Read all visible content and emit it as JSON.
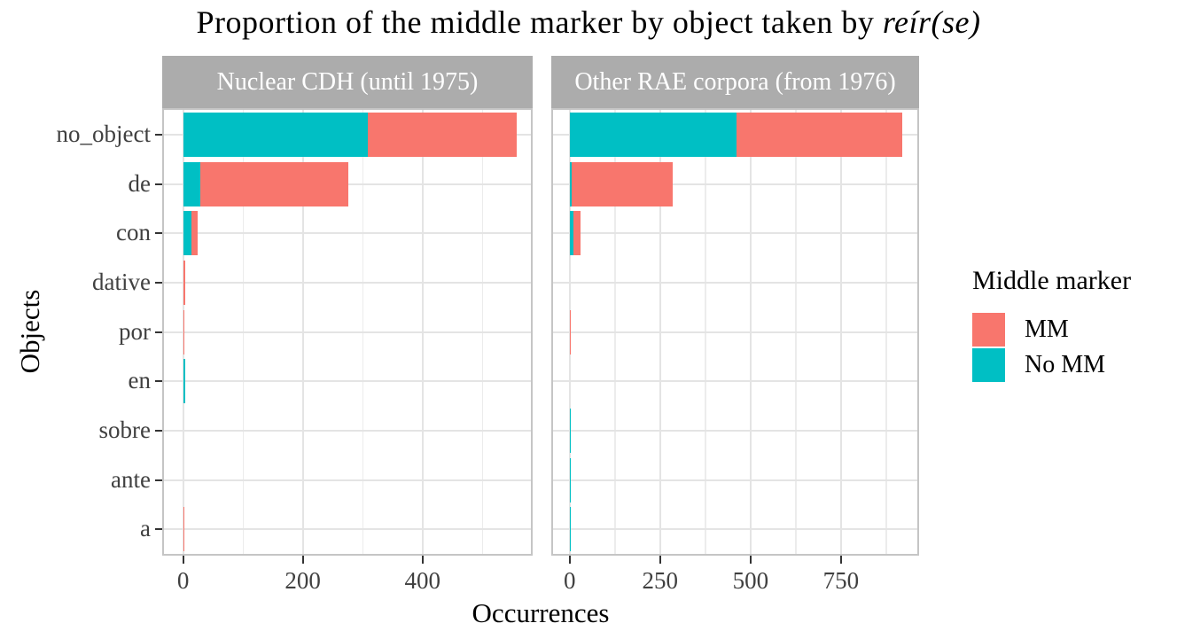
{
  "title": {
    "main": "Proportion of the middle marker by object taken by ",
    "italic": "reír(se)"
  },
  "axes": {
    "x_label": "Occurrences",
    "y_label": "Objects"
  },
  "legend": {
    "title": "Middle marker",
    "items": [
      {
        "label": "MM",
        "color": "#F8766D"
      },
      {
        "label": "No MM",
        "color": "#00BFC4"
      }
    ]
  },
  "colors": {
    "mm": "#F8766D",
    "no_mm": "#00BFC4",
    "strip_bg": "#ACACAC",
    "strip_text": "#FFFFFF",
    "grid_major": "#E4E4E4",
    "grid_minor": "#ECECEC",
    "panel_border": "#C5C5C5",
    "tick": "#333333",
    "tick_label": "#404040"
  },
  "chart_data": {
    "type": "bar",
    "orientation": "horizontal",
    "stacked": true,
    "title": "Proportion of the middle marker by object taken by reír(se)",
    "xlabel": "Occurrences",
    "ylabel": "Objects",
    "legend_title": "Middle marker",
    "legend_position": "right",
    "grid": true,
    "categories": [
      "no_object",
      "de",
      "con",
      "dative",
      "por",
      "en",
      "sobre",
      "ante",
      "a"
    ],
    "facets": [
      {
        "label": "Nuclear CDH (until 1975)",
        "xlim": [
          -32,
          581
        ],
        "x_ticks": [
          0,
          200,
          400
        ],
        "x_minor_ticks": [
          100,
          300,
          500
        ],
        "series": [
          {
            "name": "No MM",
            "values": [
              309,
              28,
              14,
              0,
              0,
              4,
              0,
              0,
              0
            ]
          },
          {
            "name": "MM",
            "values": [
              248,
              248,
              10,
              3,
              2,
              0,
              0,
              0,
              2
            ]
          }
        ]
      },
      {
        "label": "Other RAE corpora (from 1976)",
        "xlim": [
          -46,
          961
        ],
        "x_ticks": [
          0,
          250,
          500,
          750
        ],
        "x_minor_ticks": [
          125,
          375,
          625,
          875
        ],
        "series": [
          {
            "name": "No MM",
            "values": [
              461,
              6,
              10,
              0,
              0,
              0,
              2,
              2,
              2
            ]
          },
          {
            "name": "MM",
            "values": [
              459,
              278,
              20,
              0,
              2,
              0,
              0,
              0,
              0
            ]
          }
        ]
      }
    ]
  }
}
